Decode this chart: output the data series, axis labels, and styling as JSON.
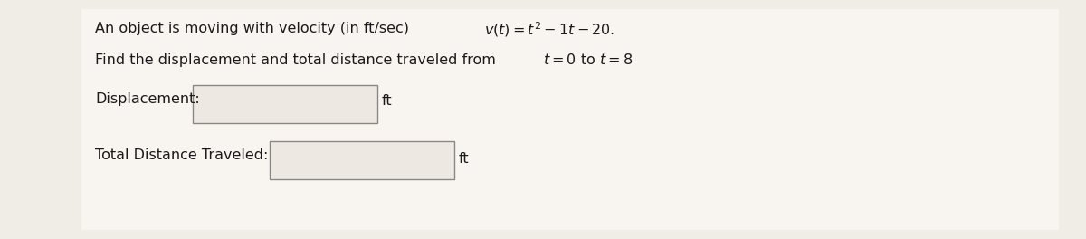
{
  "background_color": "#f0ece6",
  "panel_color": "#ffffff",
  "text_color": "#1a1a1a",
  "box_color": "#ede8e2",
  "box_edge_color": "#888888",
  "font_size_main": 11.5,
  "font_size_label": 11.5,
  "line1_plain": "An object is moving with velocity (in ft/sec) ",
  "line1_math": "$v(t) = t^2 - 1t - 20.$",
  "line2_plain": "Find the displacement and total distance traveled from ",
  "line2_math": "$t = 0$ to $t = 8$",
  "label1": "Displacement:",
  "label2": "Total Distance Traveled:",
  "unit": "ft"
}
